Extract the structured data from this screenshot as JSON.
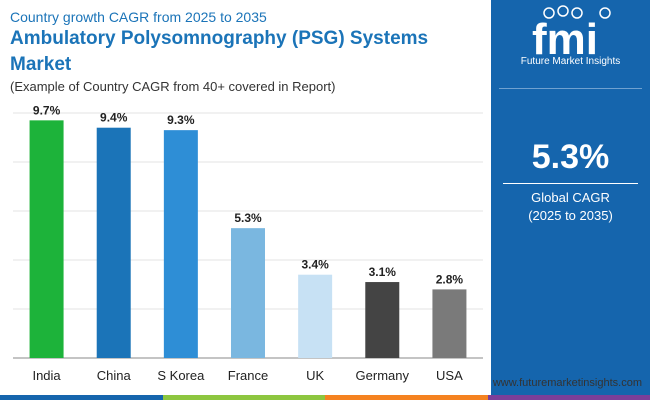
{
  "header": {
    "subtitle_top": "Country growth CAGR from 2025 to 2035",
    "title": "Ambulatory Polysomnography (PSG) Systems Market",
    "note": "(Example of Country CAGR from 40+ covered in Report)"
  },
  "chart_data": {
    "type": "bar",
    "categories": [
      "India",
      "China",
      "S Korea",
      "France",
      "UK",
      "Germany",
      "USA"
    ],
    "values": [
      9.7,
      9.4,
      9.3,
      5.3,
      3.4,
      3.1,
      2.8
    ],
    "data_labels": [
      "9.7%",
      "9.4%",
      "9.3%",
      "5.3%",
      "3.4%",
      "3.1%",
      "2.8%"
    ],
    "bar_colors": [
      "#1db33a",
      "#1b74b8",
      "#2e8ed6",
      "#7ab7e0",
      "#c7e1f4",
      "#444444",
      "#7a7a7a"
    ],
    "ylim": [
      0,
      10
    ],
    "grid": true,
    "title": "",
    "xlabel": "",
    "ylabel": ""
  },
  "side_panel": {
    "logo_text": "fmi",
    "logo_tagline": "Future Market Insights",
    "global_value": "5.3%",
    "global_label": "Global CAGR",
    "global_period": "(2025 to 2035)"
  },
  "footer": {
    "url": "www.futuremarketinsights.com"
  },
  "colors": {
    "brand_blue": "#1565ad",
    "bottom_bar": [
      "#1565ad",
      "#8dc63f",
      "#f58220",
      "#7b3f99"
    ]
  }
}
